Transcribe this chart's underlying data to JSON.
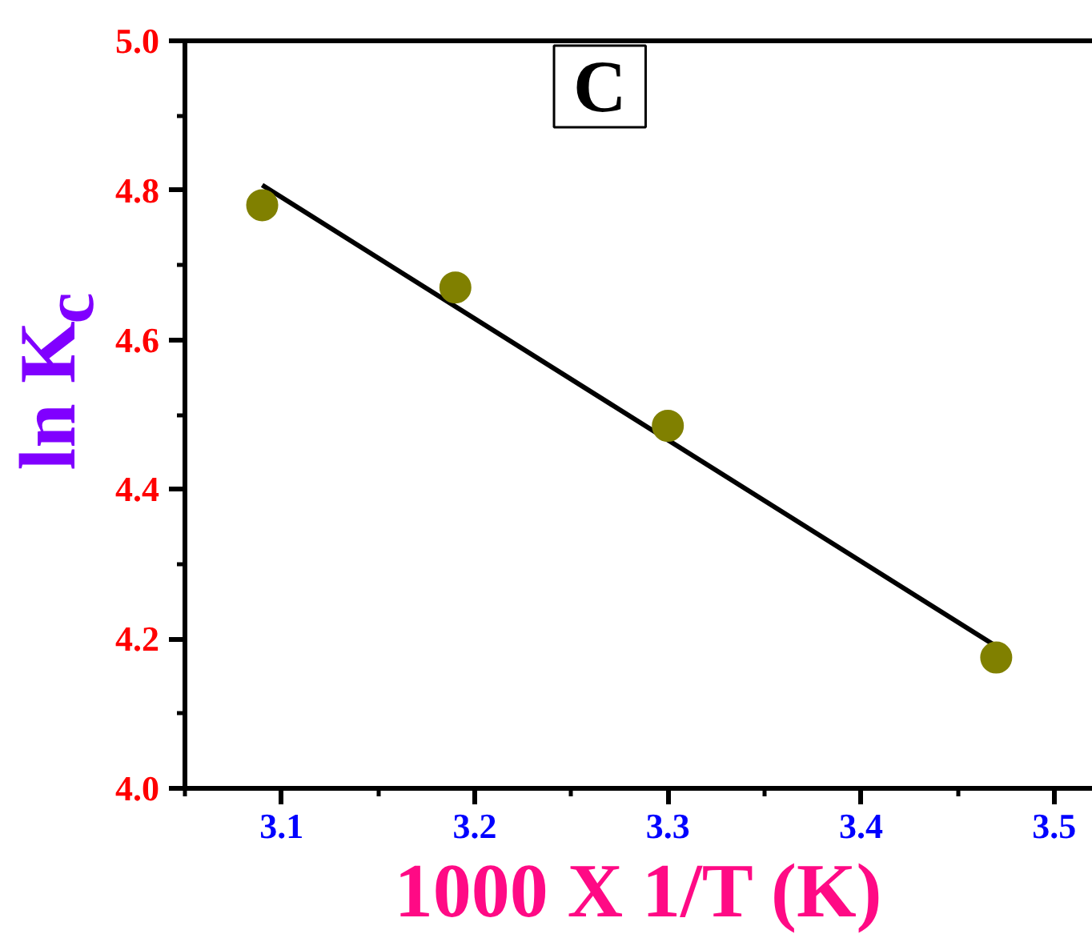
{
  "chart_data": {
    "type": "scatter",
    "xlabel": "1000 X 1/T (K)",
    "ylabel": "ln K$_{c}$",
    "annotations": [
      "C"
    ],
    "xlim": [
      3.05,
      3.52
    ],
    "ylim": [
      4.0,
      5.0
    ],
    "xticks": [
      {
        "value": 3.05,
        "label": null
      },
      3.1,
      {
        "value": 3.15,
        "label": null
      },
      3.2,
      {
        "value": 3.25,
        "label": null
      },
      3.3,
      {
        "value": 3.35,
        "label": null
      },
      3.4,
      {
        "value": 3.45,
        "label": null
      },
      3.5
    ],
    "yticks": [
      {
        "value": 4.0,
        "label": "4.0"
      },
      {
        "value": 4.1,
        "label": null
      },
      4.2,
      {
        "value": 4.3,
        "label": null
      },
      4.4,
      {
        "value": 4.5,
        "label": null
      },
      4.6,
      {
        "value": 4.7,
        "label": null
      },
      4.8,
      {
        "value": 4.9,
        "label": null
      },
      {
        "value": 5.0,
        "label": "5.0"
      }
    ],
    "series": [
      {
        "type": "line",
        "color": "#000000",
        "line_style": "solid",
        "x": [
          3.09,
          3.47
        ],
        "values": [
          4.807,
          4.19
        ]
      },
      {
        "color": "#808000",
        "marker": "circle",
        "x": [
          3.09,
          3.19,
          3.3,
          3.47
        ],
        "values": [
          4.78,
          4.67,
          4.485,
          4.175
        ]
      }
    ]
  }
}
